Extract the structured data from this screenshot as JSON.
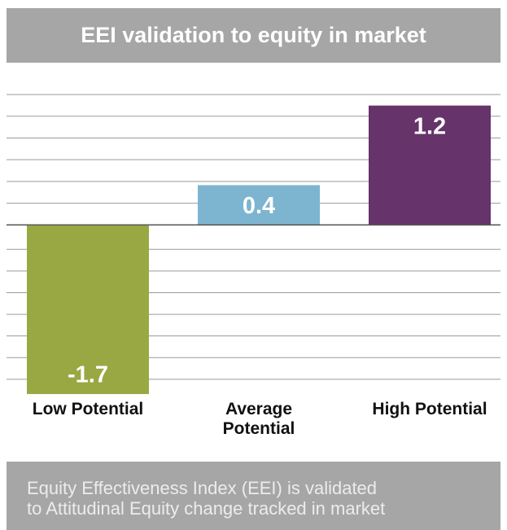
{
  "chart_data": {
    "type": "bar",
    "title": "EEI validation to equity in market",
    "categories": [
      "Low Potential",
      "Average Potential",
      "High Potential"
    ],
    "values": [
      -1.7,
      0.4,
      1.2
    ],
    "colors": [
      "#9aa843",
      "#7db5d0",
      "#66336a"
    ],
    "ylim": [
      -1.7,
      1.5
    ],
    "annotations": [
      "Equity Effectiveness Index (EEI) is validated",
      "to Attitudinal Equity change tracked in market"
    ]
  }
}
